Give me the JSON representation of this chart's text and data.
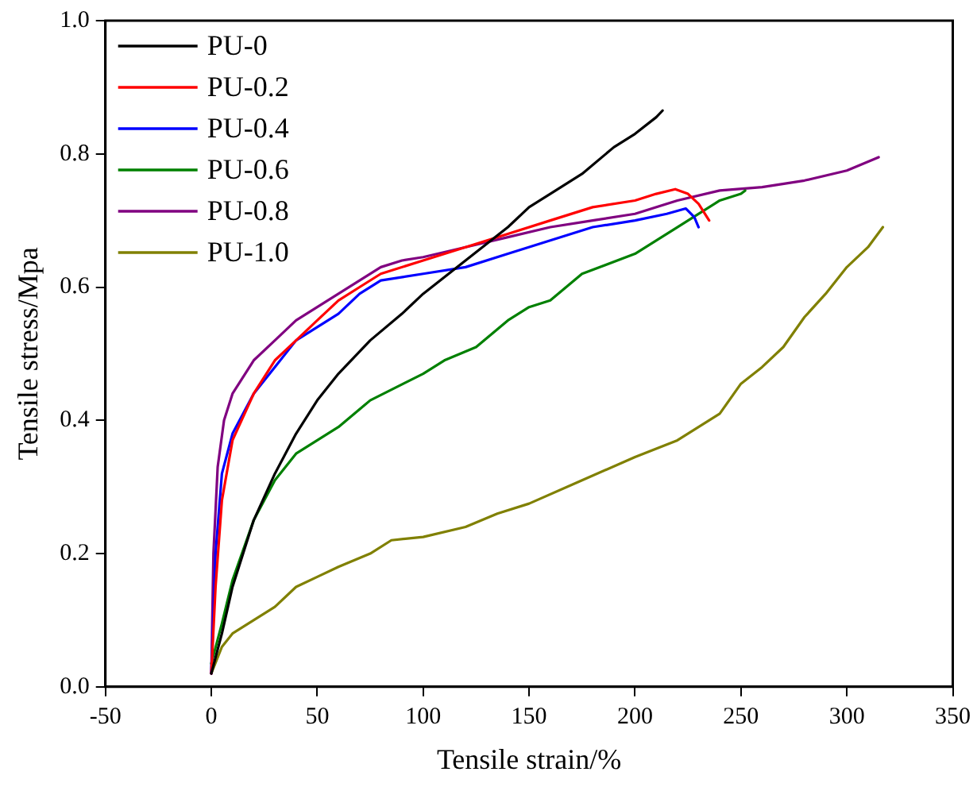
{
  "chart_data": {
    "type": "line",
    "xlabel": "Tensile strain/%",
    "ylabel": "Tensile stress/Mpa",
    "xlim": [
      -50,
      350
    ],
    "xticks": [
      -50,
      0,
      50,
      100,
      150,
      200,
      250,
      300,
      350
    ],
    "ylim": [
      0,
      1
    ],
    "yticks": [
      {
        "value": 0,
        "label": "0.0"
      },
      {
        "value": 0.2,
        "label": "0.2"
      },
      {
        "value": 0.4,
        "label": "0.4"
      },
      {
        "value": 0.6,
        "label": "0.6"
      },
      {
        "value": 0.8,
        "label": "0.8"
      },
      {
        "value": 1,
        "label": "1.0"
      }
    ],
    "grid": false,
    "legend": "top left",
    "marker": "none",
    "line_style": "solid",
    "series": [
      {
        "name": "PU-0",
        "color": "#000000",
        "x": [
          0,
          5,
          10,
          20,
          30,
          40,
          50,
          60,
          75,
          90,
          100,
          120,
          140,
          150,
          160,
          175,
          190,
          200,
          210,
          213
        ],
        "values": [
          0.02,
          0.08,
          0.15,
          0.25,
          0.32,
          0.38,
          0.43,
          0.47,
          0.52,
          0.56,
          0.59,
          0.64,
          0.69,
          0.72,
          0.74,
          0.77,
          0.81,
          0.83,
          0.855,
          0.865
        ]
      },
      {
        "name": "PU-0.2",
        "color": "#ff0000",
        "x": [
          0,
          2,
          5,
          10,
          20,
          30,
          40,
          50,
          60,
          70,
          80,
          100,
          120,
          140,
          160,
          180,
          200,
          210,
          219,
          225,
          230,
          235
        ],
        "values": [
          0.02,
          0.15,
          0.28,
          0.37,
          0.44,
          0.49,
          0.52,
          0.55,
          0.58,
          0.6,
          0.62,
          0.64,
          0.66,
          0.68,
          0.7,
          0.72,
          0.73,
          0.74,
          0.747,
          0.74,
          0.725,
          0.7
        ]
      },
      {
        "name": "PU-0.4",
        "color": "#0000ff",
        "x": [
          0,
          2,
          5,
          10,
          20,
          30,
          40,
          50,
          60,
          70,
          80,
          100,
          120,
          140,
          160,
          180,
          200,
          215,
          224,
          228,
          230
        ],
        "values": [
          0.02,
          0.2,
          0.32,
          0.38,
          0.44,
          0.48,
          0.52,
          0.54,
          0.56,
          0.59,
          0.61,
          0.62,
          0.63,
          0.65,
          0.67,
          0.69,
          0.7,
          0.71,
          0.718,
          0.705,
          0.69
        ]
      },
      {
        "name": "PU-0.6",
        "color": "#008000",
        "x": [
          0,
          5,
          10,
          20,
          30,
          40,
          50,
          60,
          75,
          100,
          110,
          125,
          140,
          150,
          160,
          175,
          200,
          220,
          240,
          250,
          252
        ],
        "values": [
          0.035,
          0.095,
          0.16,
          0.25,
          0.31,
          0.35,
          0.37,
          0.39,
          0.43,
          0.47,
          0.49,
          0.51,
          0.55,
          0.57,
          0.58,
          0.62,
          0.65,
          0.69,
          0.73,
          0.74,
          0.745
        ]
      },
      {
        "name": "PU-0.8",
        "color": "#800080",
        "x": [
          0,
          1,
          3,
          6,
          10,
          20,
          30,
          40,
          50,
          60,
          70,
          80,
          90,
          100,
          120,
          140,
          160,
          180,
          200,
          220,
          240,
          260,
          280,
          300,
          315
        ],
        "values": [
          0.02,
          0.2,
          0.33,
          0.4,
          0.44,
          0.49,
          0.52,
          0.55,
          0.57,
          0.59,
          0.61,
          0.63,
          0.64,
          0.645,
          0.66,
          0.675,
          0.69,
          0.7,
          0.71,
          0.73,
          0.745,
          0.75,
          0.76,
          0.775,
          0.795
        ]
      },
      {
        "name": "PU-1.0",
        "color": "#808000",
        "x": [
          0,
          5,
          10,
          20,
          30,
          40,
          50,
          60,
          75,
          85,
          100,
          120,
          135,
          150,
          175,
          200,
          220,
          240,
          250,
          260,
          270,
          280,
          290,
          300,
          310,
          317
        ],
        "values": [
          0.02,
          0.06,
          0.08,
          0.1,
          0.12,
          0.15,
          0.165,
          0.18,
          0.2,
          0.22,
          0.225,
          0.24,
          0.26,
          0.275,
          0.31,
          0.345,
          0.37,
          0.41,
          0.455,
          0.48,
          0.51,
          0.555,
          0.59,
          0.63,
          0.66,
          0.69
        ]
      }
    ]
  }
}
